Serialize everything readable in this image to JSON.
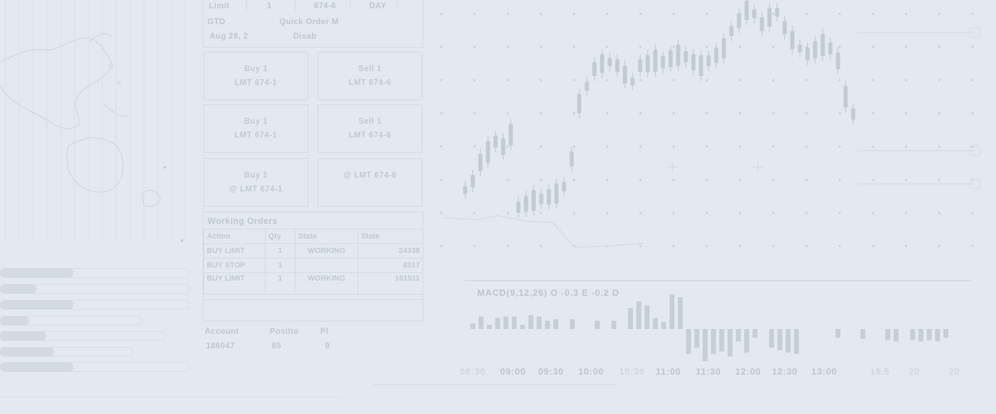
{
  "ticket": {
    "order_type": "Limit",
    "qty": "1",
    "price": "674-6",
    "tif_right": "DAY",
    "tif_left": "GTD",
    "quick_order": "Quick Order M",
    "date": "Aug 28, 2",
    "disabled": "Disab"
  },
  "quick_buttons": [
    {
      "line1": "Buy 1",
      "line2": "LMT 674-1"
    },
    {
      "line1": "Sell 1",
      "line2": "LMT 674-6"
    },
    {
      "line1": "Buy 1",
      "line2": "LMT 674-1"
    },
    {
      "line1": "Sell 1",
      "line2": "LMT 674-6"
    },
    {
      "line1": "Buy 1",
      "line2": "@ LMT 674-1"
    },
    {
      "line1": "",
      "line2": "@ LMT 674-6"
    }
  ],
  "working_orders": {
    "title": "Working Orders",
    "headers": [
      "Action",
      "Qty",
      "State",
      "State"
    ],
    "rows": [
      [
        "BUY LIMIT",
        "1",
        "WORKING",
        "24338"
      ],
      [
        "BUY STOP",
        "1",
        "",
        "8317"
      ],
      [
        "BUY LIMIT",
        "1",
        "WORKING",
        "161511"
      ]
    ]
  },
  "account": {
    "headers": [
      "Account",
      "Positio",
      "Pl"
    ],
    "values": [
      "186047",
      "85",
      "9"
    ]
  },
  "progress_bars": [
    0.38,
    0.19,
    0.38,
    0.15,
    0.24,
    0.28,
    0.38
  ],
  "chart_data": {
    "type": "candlestick",
    "indicator_label": "MACD(9,12,26) O -0.3 E -0.2 D",
    "x_ticks": [
      "09:00",
      "09:30",
      "10:00",
      "11:00",
      "11:30",
      "12:00",
      "12:30",
      "13:00",
      "19.5",
      "20",
      "20"
    ],
    "faint_ticks": [
      "08:30",
      "10:30"
    ]
  }
}
